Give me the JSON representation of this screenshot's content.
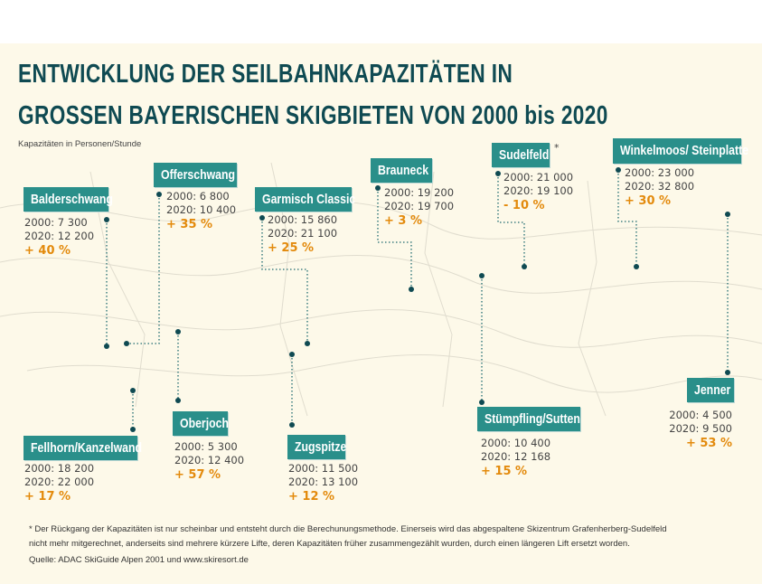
{
  "title_line1": "ENTWICKLUNG DER SEILBAHNKAPAZITÄTEN IN",
  "title_line2": "GROSSEN BAYERISCHEN SKIGBIETEN VON 2000 bis 2020",
  "subtitle": "Kapazitäten in Personen/Stunde",
  "colors": {
    "title": "#0f4a52",
    "box": "#2a8f8a",
    "percent": "#e38a0c",
    "background": "#fdf9e9"
  },
  "resorts": [
    {
      "name": "Balderschwang",
      "y2000": "2000: 7 300",
      "y2020": "2020: 12 200",
      "change": "+ 40 %"
    },
    {
      "name": "Offerschwang",
      "y2000": "2000: 6 800",
      "y2020": "2020: 10 400",
      "change": "+ 35 %"
    },
    {
      "name": "Garmisch Classic",
      "y2000": "2000: 15 860",
      "y2020": "2020: 21 100",
      "change": "+ 25 %"
    },
    {
      "name": "Brauneck",
      "y2000": "2000: 19 200",
      "y2020": "2020: 19 700",
      "change": "+ 3 %"
    },
    {
      "name": "Sudelfeld",
      "asterisk": "*",
      "y2000": "2000: 21 000",
      "y2020": "2020: 19 100",
      "change": "- 10 %"
    },
    {
      "name": "Winkelmoos/ Steinplatte",
      "y2000": "2000: 23 000",
      "y2020": "2020: 32 800",
      "change": "+ 30 %"
    },
    {
      "name": "Jenner",
      "y2000": "2000: 4 500",
      "y2020": "2020: 9 500",
      "change": "+ 53 %"
    },
    {
      "name": "Fellhorn/Kanzelwand",
      "y2000": "2000: 18 200",
      "y2020": "2020: 22 000",
      "change": "+ 17 %"
    },
    {
      "name": "Oberjoch",
      "y2000": "2000: 5 300",
      "y2020": "2020: 12 400",
      "change": "+ 57 %"
    },
    {
      "name": "Zugspitze",
      "y2000": "2000: 11 500",
      "y2020": "2020: 13 100",
      "change": "+ 12 %"
    },
    {
      "name": "Stümpfling/Sutten",
      "y2000": "2000: 10 400",
      "y2020": "2020: 12 168",
      "change": "+ 15 %"
    }
  ],
  "footnote_line1": "* Der Rückgang der Kapazitäten ist nur scheinbar und entsteht durch die Berechunungsmethode. Einerseis wird das abgespaltene Skizentrum Grafenherberg-Sudelfeld",
  "footnote_line2": "nicht mehr mitgerechnet, anderseits sind mehrere kürzere Lifte, deren Kapazitäten früher zusammengezählt wurden, durch einen längeren Lift ersetzt worden.",
  "source": "Quelle: ADAC SkiGuide Alpen 2001 und www.skiresort.de"
}
